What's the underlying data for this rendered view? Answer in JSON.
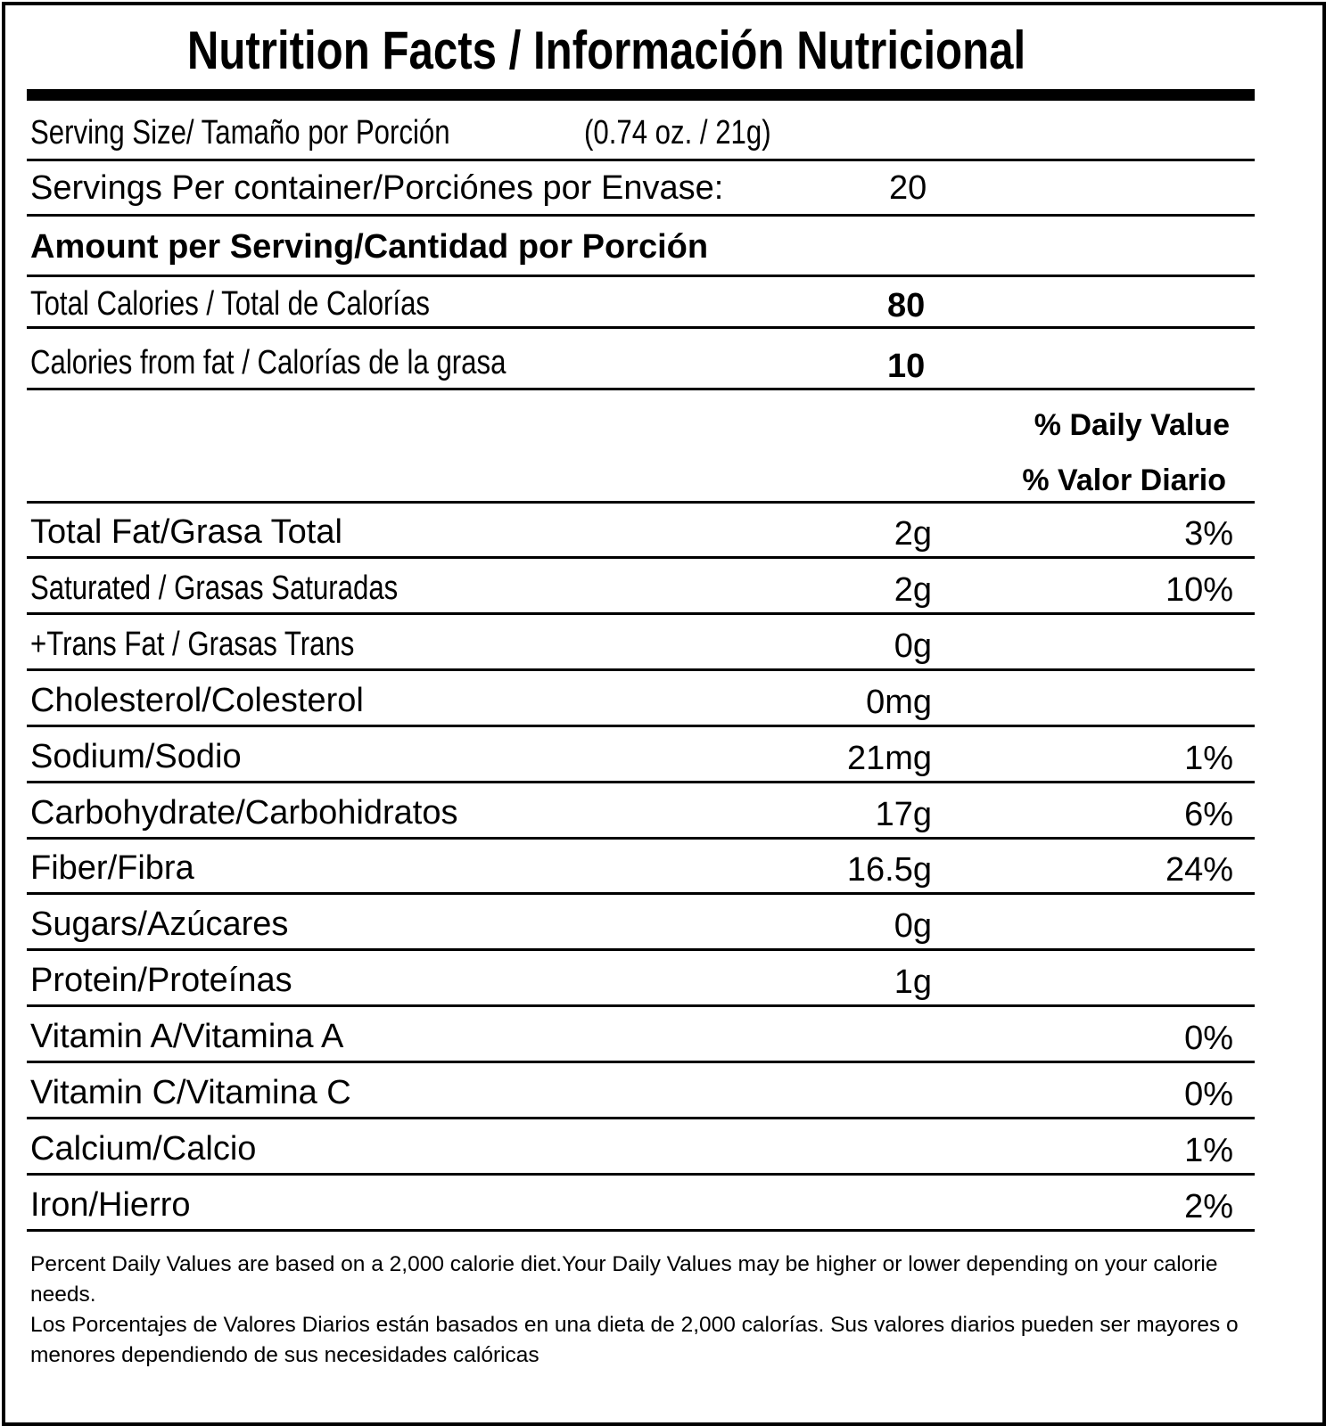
{
  "title": "Nutrition Facts / Información Nutricional",
  "serving_size": {
    "label": "Serving Size/ Tamaño por Porción",
    "value": "(0.74 oz. / 21g)"
  },
  "servings_per_container": {
    "label": "Servings Per container/Porciónes por Envase:",
    "value": "20"
  },
  "amount_per_serving": "Amount per Serving/Cantidad por Porción",
  "total_calories": {
    "label": "Total Calories / Total de Calorías",
    "value": "80"
  },
  "calories_from_fat": {
    "label": "Calories from fat / Calorías de la grasa",
    "value": "10"
  },
  "daily_value_header": {
    "en": "% Daily Value",
    "es": "% Valor Diario"
  },
  "nutrients": [
    {
      "label": "Total Fat/Grasa Total",
      "amount": "2g",
      "percent": "3%"
    },
    {
      "label": "Saturated / Grasas Saturadas",
      "amount": "2g",
      "percent": "10%"
    },
    {
      "label": "+Trans Fat / Grasas Trans",
      "amount": "0g",
      "percent": ""
    },
    {
      "label": "Cholesterol/Colesterol",
      "amount": "0mg",
      "percent": ""
    },
    {
      "label": "Sodium/Sodio",
      "amount": "21mg",
      "percent": "1%"
    },
    {
      "label": "Carbohydrate/Carbohidratos",
      "amount": "17g",
      "percent": "6%"
    },
    {
      "label": "Fiber/Fibra",
      "amount": "16.5g",
      "percent": "24%"
    },
    {
      "label": "Sugars/Azúcares",
      "amount": "0g",
      "percent": ""
    },
    {
      "label": "Protein/Proteínas",
      "amount": "1g",
      "percent": ""
    },
    {
      "label": "Vitamin A/Vitamina A",
      "amount": "",
      "percent": "0%"
    },
    {
      "label": "Vitamin C/Vitamina C",
      "amount": "",
      "percent": "0%"
    },
    {
      "label": "Calcium/Calcio",
      "amount": "",
      "percent": "1%"
    },
    {
      "label": "Iron/Hierro",
      "amount": "",
      "percent": "2%"
    }
  ],
  "footnote": {
    "en": "Percent Daily Values are based on a 2,000 calorie diet.Your Daily Values may be higher or lower depending on your calorie needs.",
    "es": "Los Porcentajes de Valores Diarios están basados en una dieta de 2,000 calorías. Sus valores diarios pueden ser mayores o menores dependiendo de sus necesidades calóricas"
  }
}
